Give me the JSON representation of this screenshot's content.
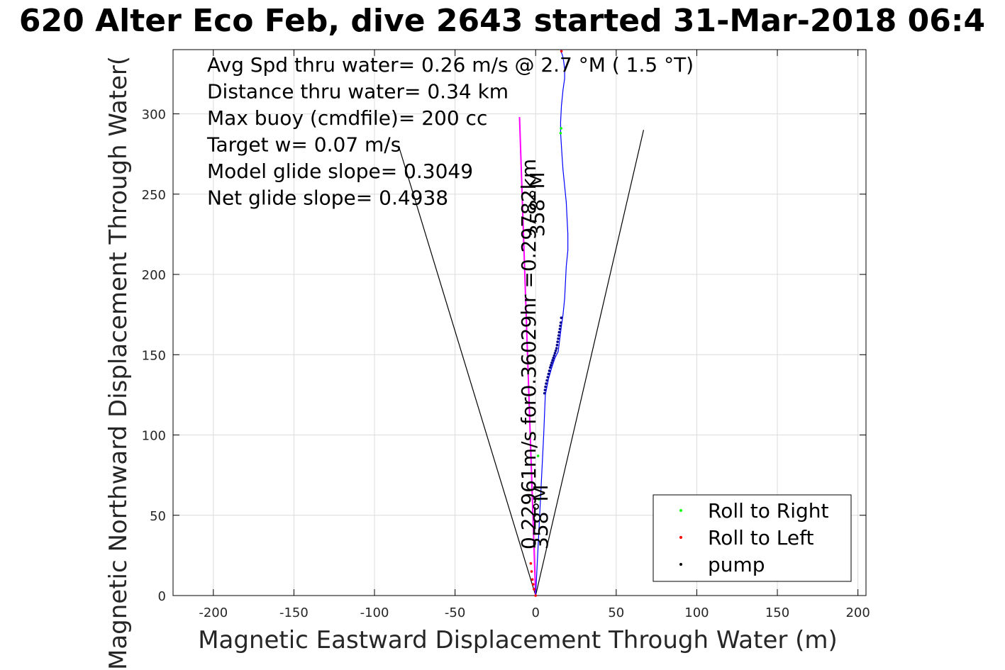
{
  "chart_data": {
    "type": "scatter",
    "title": "620 Alter Eco Feb, dive 2643 started 31-Mar-2018 06:4",
    "xlabel": "Magnetic Eastward Displacement Through Water (m)",
    "ylabel": "Magnetic Northward Displacement Through Water(",
    "xlim": [
      -225,
      205
    ],
    "ylim": [
      0,
      340
    ],
    "xticks": [
      -200,
      -150,
      -100,
      -50,
      0,
      50,
      100,
      150,
      200
    ],
    "yticks": [
      0,
      50,
      100,
      150,
      200,
      250,
      300
    ],
    "grid": true,
    "annotations": [
      "Avg Spd thru water=  0.26 m/s @   2.7 °M (  1.5 °T)",
      "Distance thru water=  0.34 km",
      "Max buoy (cmdfile)= 200 cc",
      "Target w= 0.07 m/s",
      "Model glide slope= 0.3049",
      "Net glide slope= 0.4938"
    ],
    "rotated_labels": {
      "segment_text": "0.22961m/s for0.36029hr =0.29782km",
      "heading_upper": "358°M",
      "heading_lower": "358°M"
    },
    "legend": {
      "location": "bottom-right",
      "entries": [
        {
          "label": "Roll to Right",
          "color": "#00ff00"
        },
        {
          "label": "Roll to Left",
          "color": "#ff0000"
        },
        {
          "label": "pump",
          "color": "#000000"
        }
      ]
    },
    "glide_cone": {
      "left": {
        "x": [
          0,
          -85
        ],
        "y": [
          0,
          280
        ]
      },
      "right": {
        "x": [
          0,
          67
        ],
        "y": [
          0,
          290
        ]
      }
    },
    "target_line": {
      "color": "#ff00ff",
      "x": [
        0,
        -10
      ],
      "y": [
        0,
        298
      ]
    },
    "track": {
      "color": "#0000ff",
      "x": [
        0,
        1,
        2,
        3,
        4,
        5,
        6,
        8,
        10,
        12,
        14,
        15,
        16,
        17,
        18,
        18.5,
        19,
        20,
        20,
        19.5,
        19,
        18,
        17,
        16.5,
        16,
        15.5,
        15.5,
        16,
        17,
        18,
        18,
        17.5,
        17,
        16.5,
        16,
        16
      ],
      "y": [
        0,
        20,
        40,
        60,
        80,
        100,
        125,
        135,
        142,
        148,
        152,
        160,
        168,
        175,
        185,
        195,
        205,
        215,
        225,
        235,
        245,
        255,
        265,
        272,
        280,
        288,
        295,
        305,
        315,
        322,
        328,
        332,
        335,
        337,
        338,
        340
      ]
    },
    "pump_points": {
      "x": [
        5.5,
        5.8,
        6.1,
        6.5,
        7,
        7.5,
        8,
        8.5,
        9,
        9.5,
        10,
        10.5,
        11,
        11.5,
        12,
        12.5,
        13,
        13.3,
        13.6,
        14,
        14.3,
        14.6,
        15,
        15.3,
        15.6,
        15.9
      ],
      "y": [
        126,
        128,
        130,
        132,
        134,
        136,
        138,
        140,
        142,
        143.5,
        145,
        146.5,
        148,
        149.5,
        151,
        152.5,
        154,
        156,
        158,
        160,
        162,
        164,
        166,
        168,
        170,
        173
      ]
    },
    "roll_right_points": {
      "x": [
        1.5,
        2,
        15.5,
        15.8
      ],
      "y": [
        87,
        60,
        288,
        291
      ]
    },
    "roll_left_points": {
      "x": [
        -3,
        -2.5,
        -2,
        -1.5,
        -1,
        0,
        16
      ],
      "y": [
        20,
        15,
        10,
        7,
        4,
        0,
        339
      ]
    }
  }
}
